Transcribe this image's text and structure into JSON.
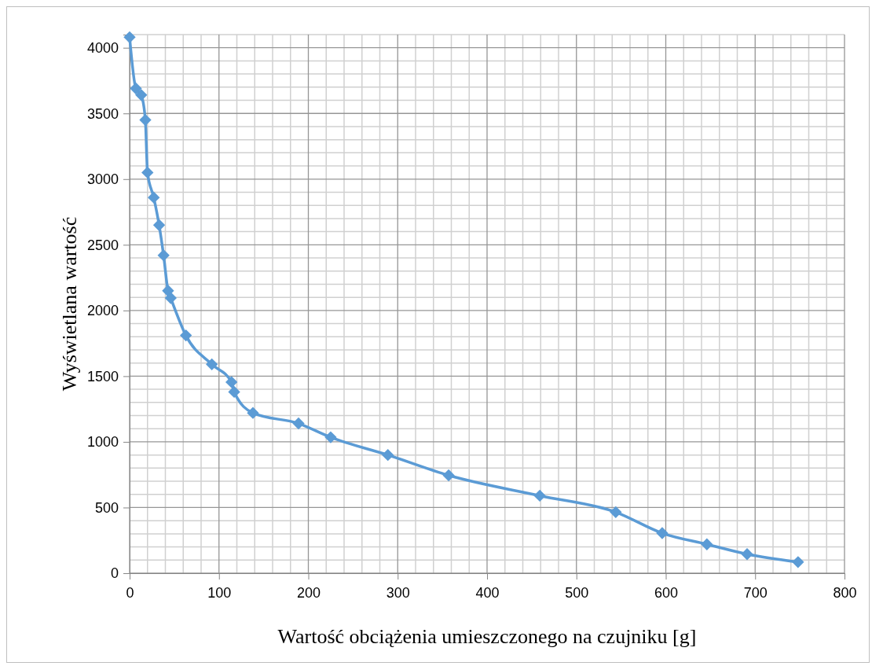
{
  "chart_data": {
    "type": "line",
    "xlabel": "Wartość obciążenia umieszczonego na czujniku [g]",
    "ylabel": "Wyświetlana wartość",
    "x": [
      0,
      7,
      13,
      17.6,
      20,
      27,
      33,
      38,
      43,
      46,
      63,
      92,
      114,
      117,
      138,
      189,
      225,
      289,
      357,
      459,
      544,
      596,
      646,
      691,
      748
    ],
    "series": [
      {
        "color": "#5b9bd5",
        "values": [
          4080,
          3690,
          3640,
          3450,
          3050,
          2860,
          2650,
          2420,
          2150,
          2095,
          1810,
          1590,
          1455,
          1380,
          1220,
          1140,
          1035,
          900,
          745,
          590,
          465,
          305,
          220,
          145,
          85
        ]
      }
    ],
    "xlim": [
      0,
      800
    ],
    "xticks": [
      0,
      100,
      200,
      300,
      400,
      500,
      600,
      700,
      800
    ],
    "ylim": [
      0,
      4100
    ],
    "yticks": [
      0,
      500,
      1000,
      1500,
      2000,
      2500,
      3000,
      3500,
      4000
    ],
    "grid": true,
    "marker": "diamond",
    "line_style": "solid"
  }
}
